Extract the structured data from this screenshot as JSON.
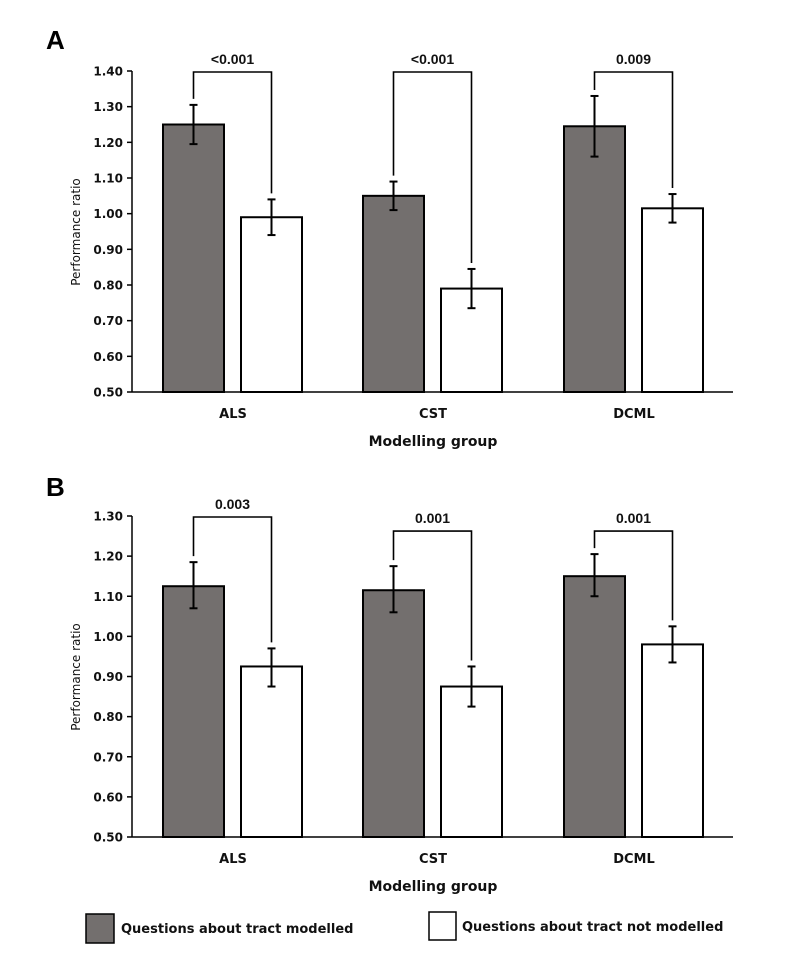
{
  "colors": {
    "modelled": "#736f6e",
    "not_modelled": "#ffffff",
    "stroke": "#000000"
  },
  "legend": {
    "items": [
      {
        "label": "Questions about tract modelled",
        "color": "#736f6e"
      },
      {
        "label": "Questions about tract not modelled",
        "color": "#ffffff"
      }
    ]
  },
  "chart_data": [
    {
      "panel": "A",
      "type": "bar",
      "xlabel": "Modelling group",
      "ylabel": "Performance ratio",
      "ylim": [
        0.5,
        1.4
      ],
      "yticks": [
        "0.50",
        "0.60",
        "0.70",
        "0.80",
        "0.90",
        "1.00",
        "1.10",
        "1.20",
        "1.30",
        "1.40"
      ],
      "categories": [
        "ALS",
        "CST",
        "DCML"
      ],
      "series": [
        {
          "name": "Questions about tract modelled",
          "values": [
            1.25,
            1.05,
            1.245
          ],
          "err_low": [
            1.195,
            1.01,
            1.16
          ],
          "err_high": [
            1.305,
            1.09,
            1.33
          ]
        },
        {
          "name": "Questions about tract not modelled",
          "values": [
            0.99,
            0.79,
            1.015
          ],
          "err_low": [
            0.94,
            0.735,
            0.975
          ],
          "err_high": [
            1.04,
            0.845,
            1.055
          ]
        }
      ],
      "significance": [
        "<0.001",
        "<0.001",
        "0.009"
      ],
      "bracket_level": 1.4,
      "grid": false,
      "legend_position": "bottom"
    },
    {
      "panel": "B",
      "type": "bar",
      "xlabel": "Modelling group",
      "ylabel": "Performance ratio",
      "ylim": [
        0.5,
        1.3
      ],
      "yticks": [
        "0.50",
        "0.60",
        "0.70",
        "0.80",
        "0.90",
        "1.00",
        "1.10",
        "1.20",
        "1.30"
      ],
      "categories": [
        "ALS",
        "CST",
        "DCML"
      ],
      "series": [
        {
          "name": "Questions about tract modelled",
          "values": [
            1.125,
            1.115,
            1.15
          ],
          "err_low": [
            1.07,
            1.06,
            1.1
          ],
          "err_high": [
            1.185,
            1.175,
            1.205
          ]
        },
        {
          "name": "Questions about tract not modelled",
          "values": [
            0.925,
            0.875,
            0.98
          ],
          "err_low": [
            0.875,
            0.825,
            0.935
          ],
          "err_high": [
            0.97,
            0.925,
            1.025
          ]
        }
      ],
      "significance": [
        "0.003",
        "0.001",
        "0.001"
      ],
      "bracket_level": [
        1.3,
        1.265,
        1.265
      ],
      "grid": false,
      "legend_position": "bottom"
    }
  ]
}
